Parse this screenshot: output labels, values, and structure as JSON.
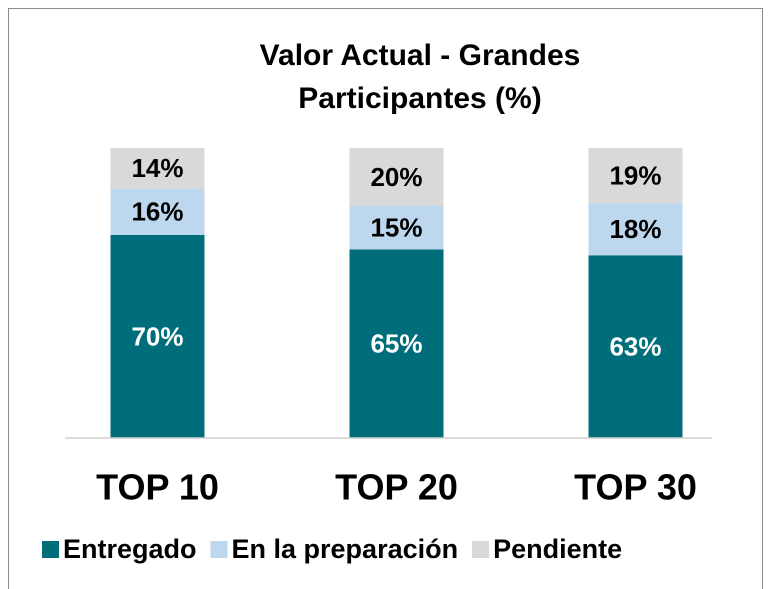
{
  "chart_data": {
    "type": "stacked_bar",
    "title": "Valor Actual - Grandes Participantes (%)",
    "categories": [
      "TOP 10",
      "TOP 20",
      "TOP 30"
    ],
    "series": [
      {
        "name": "Entregado",
        "color": "#006e7a",
        "label_color": "#ffffff",
        "values": [
          70,
          65,
          63
        ],
        "value_labels": [
          "70%",
          "65%",
          "63%"
        ]
      },
      {
        "name": "En la preparación",
        "color": "#bdd7ee",
        "label_color": "#000000",
        "values": [
          16,
          15,
          18
        ],
        "value_labels": [
          "16%",
          "15%",
          "18%"
        ]
      },
      {
        "name": "Pendiente",
        "color": "#d9d9d9",
        "label_color": "#000000",
        "values": [
          14,
          20,
          19
        ],
        "value_labels": [
          "14%",
          "20%",
          "19%"
        ]
      }
    ],
    "ylim": [
      0,
      100
    ],
    "legend": "bottom"
  }
}
